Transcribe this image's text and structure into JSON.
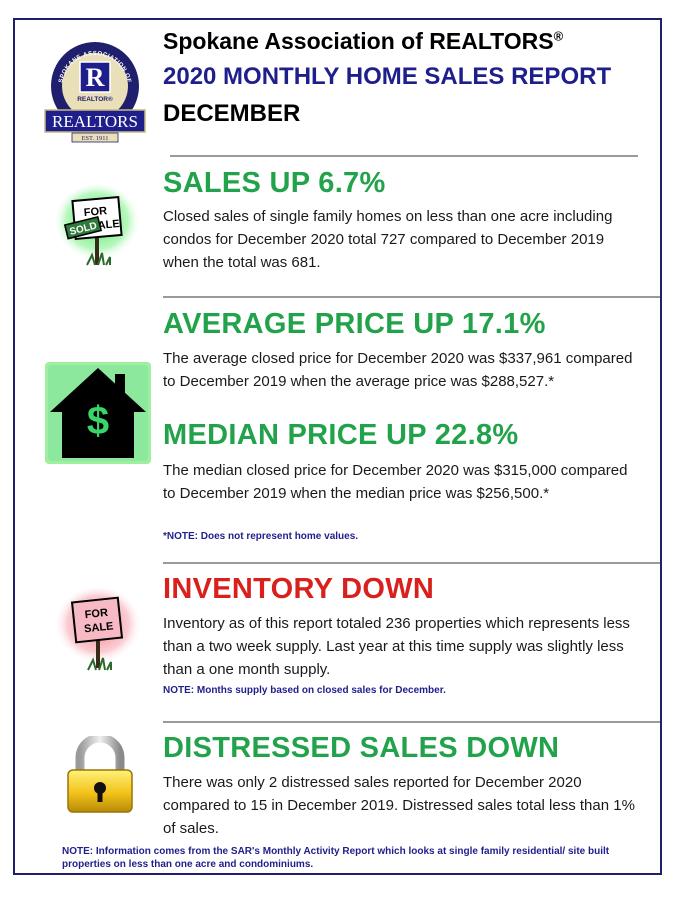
{
  "header": {
    "org_name": "Spokane Association of REALTORS",
    "registered_mark": "®",
    "report_title": "2020 MONTHLY HOME SALES REPORT",
    "month": "DECEMBER"
  },
  "logo": {
    "ring_text": "SPOKANE ASSOCIATION OF",
    "mark_letter": "R",
    "mark_caption": "REALTOR®",
    "banner_text": "REALTORS",
    "est_text": "EST. 1911"
  },
  "sections": {
    "sales": {
      "headline": "SALES UP 6.7%",
      "body": "Closed sales of single family homes on less than one acre including condos for December 2020 total 727 compared to December 2019 when the total was 681.",
      "sign_top": "FOR",
      "sign_mid": "ALE",
      "sign_sold": "SOLD"
    },
    "average": {
      "headline": "AVERAGE PRICE UP 17.1%",
      "body": "The average closed price for December 2020 was $337,961 compared to December 2019 when the average price was $288,527.*",
      "icon_symbol": "$"
    },
    "median": {
      "headline": "MEDIAN PRICE UP 22.8%",
      "body": "The median closed price for December 2020 was $315,000 compared to December 2019 when the median price was $256,500.*",
      "note": "*NOTE:  Does not represent home values."
    },
    "inventory": {
      "headline": "INVENTORY DOWN",
      "body": "Inventory as of this report totaled 236 properties which represents less than a two week supply.  Last year at this time supply was slightly less than a one month supply.",
      "note": "NOTE:  Months supply based on closed sales for December.",
      "sign_top": "FOR",
      "sign_bottom": "SALE"
    },
    "distressed": {
      "headline": "DISTRESSED SALES DOWN",
      "body": "There was only 2 distressed sales reported for December 2020 compared to 15 in December 2019. Distressed sales total less than 1% of sales."
    }
  },
  "footnote": "NOTE:  Information comes from the SAR's Monthly Activity Report which looks at single family residential/ site built properties on less than one acre and condominiums.",
  "colors": {
    "navy": "#1f1f8c",
    "green": "#22a24a",
    "red": "#d8201c"
  },
  "icons": [
    "realtor-logo-icon",
    "sold-sign-icon",
    "house-dollar-icon",
    "for-sale-sign-icon",
    "padlock-icon"
  ]
}
